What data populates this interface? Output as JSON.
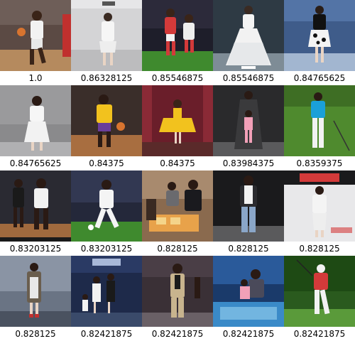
{
  "results": [
    {
      "score": "1.0",
      "scene": "basketball-player-dribbling"
    },
    {
      "score": "0.86328125",
      "scene": "runway-model-white-outfit"
    },
    {
      "score": "0.85546875",
      "scene": "soccer-players-red-white"
    },
    {
      "score": "0.85546875",
      "scene": "runway-model-white-gown"
    },
    {
      "score": "0.84765625",
      "scene": "runway-model-black-white-dress"
    },
    {
      "score": "0.84765625",
      "scene": "woman-white-dress-grey-wall"
    },
    {
      "score": "0.84375",
      "scene": "basketball-player-yellow-jersey"
    },
    {
      "score": "0.84375",
      "scene": "girl-yellow-dress-stage"
    },
    {
      "score": "0.83984375",
      "scene": "mother-daughter-runway"
    },
    {
      "score": "0.8359375",
      "scene": "golfer-blue-shirt"
    },
    {
      "score": "0.83203125",
      "scene": "basketball-players-court"
    },
    {
      "score": "0.83203125",
      "scene": "soccer-player-white-kit"
    },
    {
      "score": "0.828125",
      "scene": "people-at-table-game"
    },
    {
      "score": "0.828125",
      "scene": "man-runway-jeans"
    },
    {
      "score": "0.828125",
      "scene": "runway-model-white-brand-logo"
    },
    {
      "score": "0.828125",
      "scene": "runway-model-coat"
    },
    {
      "score": "0.82421875",
      "scene": "runway-group-models"
    },
    {
      "score": "0.82421875",
      "scene": "man-beige-suit-street"
    },
    {
      "score": "0.82421875",
      "scene": "parent-child-aquarium"
    },
    {
      "score": "0.82421875",
      "scene": "golfer-red-shirt-swing"
    }
  ]
}
